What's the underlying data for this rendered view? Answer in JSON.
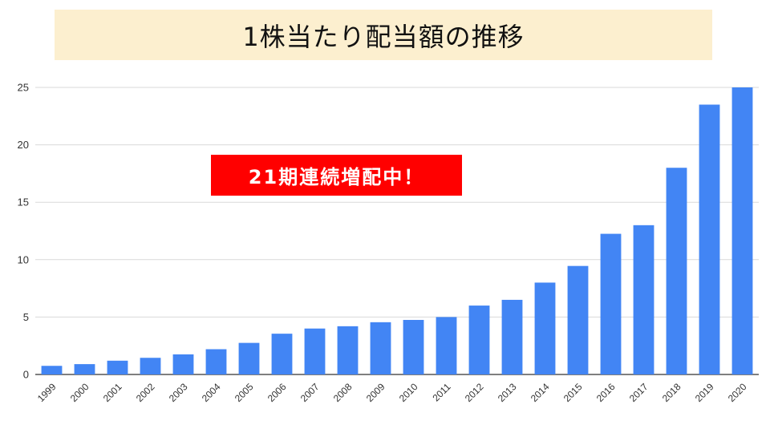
{
  "title": "1株当たり配当額の推移",
  "badge": {
    "text": "21期連続増配中！"
  },
  "colors": {
    "title_bg": "#fcefcf",
    "bar": "#4285f4",
    "badge_bg": "#ff0000",
    "grid": "#d9d9d9",
    "axis": "#333333"
  },
  "chart_data": {
    "type": "bar",
    "title": "1株当たり配当額の推移",
    "xlabel": "",
    "ylabel": "",
    "categories": [
      "1999",
      "2000",
      "2001",
      "2002",
      "2003",
      "2004",
      "2005",
      "2006",
      "2007",
      "2008",
      "2009",
      "2010",
      "2011",
      "2012",
      "2013",
      "2014",
      "2015",
      "2016",
      "2017",
      "2018",
      "2019",
      "2020"
    ],
    "values": [
      0.75,
      0.9,
      1.2,
      1.45,
      1.75,
      2.2,
      2.75,
      3.55,
      4.0,
      4.2,
      4.55,
      4.75,
      5.0,
      6.0,
      6.5,
      8.0,
      9.45,
      12.25,
      13.0,
      18.0,
      23.5,
      25.0
    ],
    "ylim": [
      0,
      25
    ],
    "yticks": [
      0,
      5,
      10,
      15,
      20,
      25
    ],
    "grid": true,
    "legend": "none",
    "annotations": [
      "21期連続増配中！"
    ]
  }
}
